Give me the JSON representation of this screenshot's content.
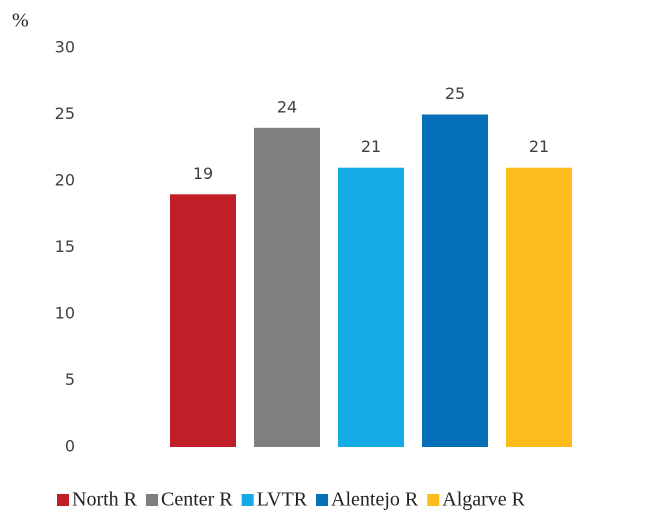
{
  "chart_data": {
    "type": "bar",
    "ylabel": "%",
    "categories": [
      null
    ],
    "series": [
      {
        "name": "North R",
        "color": "#c01f27",
        "values": [
          19
        ]
      },
      {
        "name": "Center R",
        "color": "#7f7f7f",
        "values": [
          24
        ]
      },
      {
        "name": "LVTR",
        "color": "#13aae6",
        "values": [
          21
        ]
      },
      {
        "name": "Alentejo R",
        "color": "#0570b8",
        "values": [
          25
        ]
      },
      {
        "name": "Algarve R",
        "color": "#fbbc1c",
        "values": [
          21
        ]
      }
    ],
    "ylim": [
      0,
      30
    ],
    "yticks": [
      0,
      5,
      10,
      15,
      20,
      25,
      30
    ],
    "grid": false,
    "legend": "bottom"
  }
}
